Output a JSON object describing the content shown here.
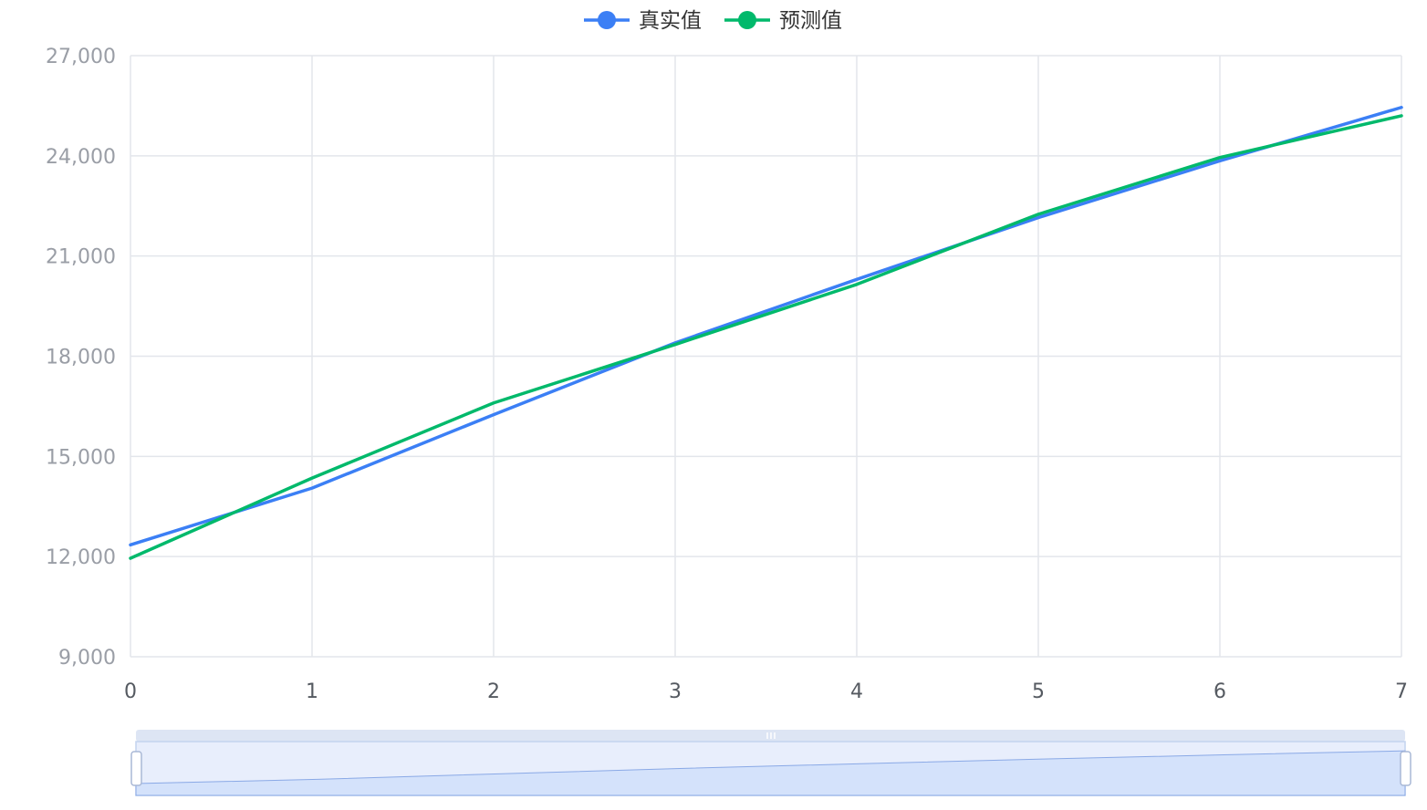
{
  "colors": {
    "series_actual": "#3b7ff5",
    "series_pred": "#00b96b",
    "grid": "#e3e6eb",
    "zoom_fill": "#d4e2fb",
    "zoom_border": "#c3d3ef"
  },
  "legend": {
    "items": [
      {
        "label": "真实值",
        "icon": "circle-line-marker-icon"
      },
      {
        "label": "预测值",
        "icon": "circle-line-marker-icon"
      }
    ]
  },
  "chart_data": {
    "type": "line",
    "x": [
      0,
      1,
      2,
      3,
      4,
      5,
      6,
      7
    ],
    "series": [
      {
        "name": "真实值",
        "values": [
          12350,
          14050,
          16250,
          18400,
          20300,
          22150,
          23850,
          25450
        ]
      },
      {
        "name": "预测值",
        "values": [
          11950,
          14350,
          16600,
          18350,
          20150,
          22250,
          23950,
          25200
        ]
      }
    ],
    "xlim": [
      0,
      7
    ],
    "ylim": [
      9000,
      27000
    ],
    "x_ticks": [
      "0",
      "1",
      "2",
      "3",
      "4",
      "5",
      "6",
      "7"
    ],
    "y_ticks": [
      "9,000",
      "12,000",
      "15,000",
      "18,000",
      "21,000",
      "24,000",
      "27,000"
    ],
    "y_tick_values": [
      9000,
      12000,
      15000,
      18000,
      21000,
      24000,
      27000
    ],
    "grid": true,
    "legend_position": "top-center",
    "data_zoom": {
      "start": 0,
      "end": 100
    }
  }
}
